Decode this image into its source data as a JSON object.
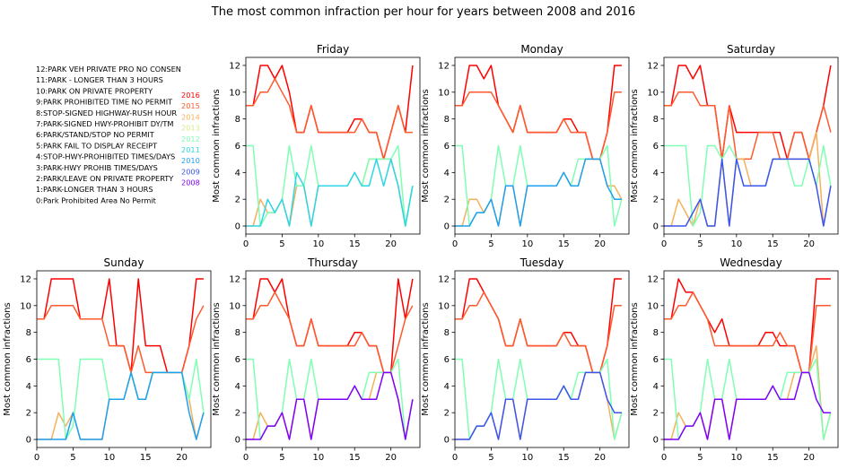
{
  "chart_data": {
    "type": "line",
    "title": "The most common infraction per hour for years between 2008 and 2016",
    "ylabel": "Most common infractions",
    "xlim": [
      0,
      24
    ],
    "ylim": [
      -0.6,
      12.6
    ],
    "xticks": [
      0,
      5,
      10,
      15,
      20
    ],
    "yticks": [
      0,
      2,
      4,
      6,
      8,
      10,
      12
    ],
    "hours": [
      0,
      1,
      2,
      3,
      4,
      5,
      6,
      7,
      8,
      9,
      10,
      11,
      12,
      13,
      14,
      15,
      16,
      17,
      18,
      19,
      20,
      21,
      22,
      23
    ],
    "legend_years": [
      "2016",
      "2015",
      "2014",
      "2013",
      "2012",
      "2011",
      "2010",
      "2009",
      "2008"
    ],
    "year_colors": {
      "2016": "#ff0000",
      "2015": "#ff5a2d",
      "2014": "#f4b15a",
      "2013": "#d4ec8a",
      "2012": "#80ffb4",
      "2011": "#2dd6e3",
      "2010": "#1ea0f0",
      "2009": "#3a55f0",
      "2008": "#8000ff"
    },
    "infraction_codes": [
      "12:PARK VEH PRIVATE PRO NO CONSEN",
      "11:PARK - LONGER THAN 3 HOURS",
      "10:PARK ON PRIVATE PROPERTY",
      "9:PARK PROHIBITED TIME NO PERMIT",
      "8:STOP-SIGNED HIGHWAY-RUSH HOUR",
      "7:PARK-SIGNED HWY-PROHIBIT DY/TM",
      "6:PARK/STAND/STOP NO PERMIT",
      "5:PARK FAIL TO DISPLAY RECEIPT",
      "4:STOP-HWY-PROHIBITED TIMES/DAYS",
      "3:PARK-HWY PROHIB TIMES/DAYS",
      "2:PARK/LEAVE ON PRIVATE PROPERTY",
      "1:PARK-LONGER THAN 3 HOURS",
      "0:Park Prohibited Area No Permit"
    ],
    "panels": [
      {
        "title": "Friday",
        "series": [
          {
            "year": "2016",
            "values": [
              9,
              9,
              12,
              12,
              11,
              12,
              10,
              7,
              7,
              9,
              7,
              7,
              7,
              7,
              7,
              8,
              8,
              7,
              7,
              5,
              7,
              9,
              7,
              12
            ]
          },
          {
            "year": "2015",
            "values": [
              9,
              9,
              10,
              10,
              11,
              10,
              9,
              7,
              7,
              9,
              7,
              7,
              7,
              7,
              7,
              7,
              8,
              7,
              7,
              5,
              7,
              9,
              7,
              7
            ]
          },
          {
            "year": "2014",
            "values": [
              0,
              0,
              2,
              1,
              1,
              2,
              0,
              3,
              3,
              0,
              3,
              3,
              3,
              3,
              3,
              4,
              3,
              5,
              5,
              5,
              5,
              3,
              0,
              3
            ]
          },
          {
            "year": "2012",
            "values": [
              6,
              6,
              0,
              1,
              1,
              2,
              6,
              3,
              3,
              6,
              3,
              3,
              3,
              3,
              3,
              4,
              3,
              5,
              5,
              5,
              5,
              6,
              0,
              3
            ]
          },
          {
            "year": "2011",
            "values": [
              0,
              0,
              0,
              2,
              1,
              2,
              0,
              4,
              3,
              0,
              3,
              3,
              3,
              3,
              3,
              4,
              3,
              3,
              5,
              3,
              5,
              3,
              0,
              3
            ]
          }
        ]
      },
      {
        "title": "Monday",
        "series": [
          {
            "year": "2016",
            "values": [
              9,
              9,
              12,
              12,
              11,
              12,
              9,
              8,
              7,
              9,
              7,
              7,
              7,
              7,
              7,
              8,
              8,
              7,
              7,
              5,
              5,
              7,
              12,
              12
            ]
          },
          {
            "year": "2015",
            "values": [
              9,
              9,
              10,
              10,
              10,
              10,
              9,
              8,
              7,
              9,
              7,
              7,
              7,
              7,
              7,
              8,
              7,
              7,
              7,
              5,
              5,
              7,
              10,
              10
            ]
          },
          {
            "year": "2014",
            "values": [
              0,
              0,
              2,
              2,
              1,
              2,
              0,
              3,
              3,
              0,
              3,
              3,
              3,
              3,
              3,
              4,
              3,
              3,
              5,
              5,
              5,
              3,
              3,
              2
            ]
          },
          {
            "year": "2012",
            "values": [
              6,
              6,
              0,
              1,
              1,
              2,
              6,
              3,
              3,
              6,
              3,
              3,
              3,
              3,
              3,
              4,
              3,
              5,
              5,
              5,
              5,
              6,
              0,
              2
            ]
          },
          {
            "year": "2010",
            "values": [
              0,
              0,
              0,
              1,
              1,
              2,
              0,
              3,
              3,
              0,
              3,
              3,
              3,
              3,
              3,
              4,
              3,
              3,
              5,
              5,
              5,
              3,
              2,
              2
            ]
          }
        ]
      },
      {
        "title": "Saturday",
        "series": [
          {
            "year": "2016",
            "values": [
              9,
              9,
              12,
              12,
              11,
              12,
              9,
              9,
              5,
              9,
              7,
              7,
              7,
              7,
              7,
              7,
              7,
              5,
              7,
              7,
              5,
              7,
              9,
              12
            ]
          },
          {
            "year": "2015",
            "values": [
              9,
              9,
              10,
              10,
              10,
              9,
              9,
              9,
              5,
              9,
              5,
              5,
              5,
              7,
              7,
              7,
              5,
              5,
              7,
              7,
              5,
              7,
              9,
              7
            ]
          },
          {
            "year": "2014",
            "values": [
              0,
              0,
              2,
              1,
              0,
              2,
              0,
              0,
              5,
              0,
              5,
              5,
              3,
              3,
              3,
              5,
              5,
              5,
              5,
              5,
              5,
              7,
              0,
              3
            ]
          },
          {
            "year": "2012",
            "values": [
              6,
              6,
              6,
              6,
              0,
              1,
              6,
              6,
              5,
              6,
              5,
              3,
              3,
              3,
              3,
              5,
              5,
              5,
              3,
              3,
              5,
              3,
              6,
              3
            ]
          },
          {
            "year": "2009",
            "values": [
              0,
              0,
              0,
              0,
              1,
              2,
              0,
              0,
              5,
              0,
              5,
              3,
              3,
              3,
              3,
              5,
              5,
              5,
              5,
              5,
              5,
              3,
              0,
              3
            ]
          }
        ]
      },
      {
        "title": "Sunday",
        "series": [
          {
            "year": "2016",
            "values": [
              9,
              9,
              12,
              12,
              12,
              12,
              9,
              9,
              9,
              9,
              12,
              7,
              7,
              5,
              12,
              7,
              7,
              7,
              5,
              5,
              5,
              7,
              12,
              12
            ]
          },
          {
            "year": "2015",
            "values": [
              9,
              9,
              10,
              10,
              10,
              10,
              9,
              9,
              9,
              9,
              7,
              7,
              7,
              5,
              7,
              5,
              5,
              5,
              5,
              5,
              5,
              7,
              9,
              10
            ]
          },
          {
            "year": "2014",
            "values": [
              0,
              0,
              0,
              2,
              1,
              2,
              0,
              0,
              0,
              0,
              3,
              3,
              3,
              5,
              3,
              3,
              5,
              5,
              5,
              5,
              5,
              3,
              0,
              2
            ]
          },
          {
            "year": "2012",
            "values": [
              6,
              6,
              6,
              6,
              0,
              1,
              6,
              6,
              6,
              6,
              3,
              3,
              3,
              5,
              3,
              3,
              5,
              5,
              5,
              5,
              5,
              3,
              6,
              2
            ]
          },
          {
            "year": "2010",
            "values": [
              0,
              0,
              0,
              0,
              0,
              2,
              0,
              0,
              0,
              0,
              3,
              3,
              3,
              5,
              3,
              3,
              5,
              5,
              5,
              5,
              5,
              2,
              0,
              2
            ]
          }
        ]
      },
      {
        "title": "Thursday",
        "series": [
          {
            "year": "2016",
            "values": [
              9,
              9,
              12,
              12,
              11,
              12,
              9,
              7,
              7,
              9,
              7,
              7,
              7,
              7,
              7,
              8,
              8,
              7,
              7,
              5,
              5,
              12,
              9,
              12
            ]
          },
          {
            "year": "2015",
            "values": [
              9,
              9,
              10,
              10,
              11,
              10,
              9,
              7,
              7,
              9,
              7,
              7,
              7,
              7,
              7,
              7,
              8,
              7,
              7,
              5,
              5,
              7,
              9,
              10
            ]
          },
          {
            "year": "2014",
            "values": [
              0,
              0,
              2,
              1,
              1,
              2,
              0,
              3,
              3,
              0,
              3,
              3,
              3,
              3,
              3,
              4,
              3,
              3,
              5,
              5,
              5,
              3,
              0,
              3
            ]
          },
          {
            "year": "2012",
            "values": [
              6,
              6,
              0,
              1,
              1,
              2,
              6,
              3,
              3,
              6,
              3,
              3,
              3,
              3,
              3,
              4,
              3,
              5,
              5,
              5,
              5,
              6,
              0,
              3
            ]
          },
          {
            "year": "2008",
            "values": [
              0,
              0,
              0,
              1,
              1,
              2,
              0,
              3,
              3,
              0,
              3,
              3,
              3,
              3,
              3,
              4,
              3,
              3,
              3,
              5,
              5,
              3,
              0,
              3
            ]
          }
        ]
      },
      {
        "title": "Tuesday",
        "series": [
          {
            "year": "2016",
            "values": [
              9,
              9,
              12,
              12,
              11,
              10,
              9,
              7,
              7,
              9,
              7,
              7,
              7,
              7,
              7,
              8,
              8,
              7,
              7,
              5,
              5,
              7,
              12,
              12
            ]
          },
          {
            "year": "2015",
            "values": [
              9,
              9,
              10,
              10,
              11,
              10,
              9,
              7,
              7,
              9,
              7,
              7,
              7,
              7,
              7,
              8,
              7,
              7,
              7,
              5,
              5,
              7,
              10,
              10
            ]
          },
          {
            "year": "2014",
            "values": [
              0,
              0,
              0,
              1,
              1,
              2,
              0,
              3,
              3,
              0,
              3,
              3,
              3,
              3,
              3,
              4,
              3,
              3,
              5,
              5,
              5,
              3,
              0,
              2
            ]
          },
          {
            "year": "2012",
            "values": [
              6,
              6,
              0,
              1,
              1,
              2,
              6,
              3,
              3,
              6,
              3,
              3,
              3,
              3,
              3,
              4,
              3,
              5,
              5,
              5,
              5,
              6,
              0,
              2
            ]
          },
          {
            "year": "2009",
            "values": [
              0,
              0,
              0,
              1,
              1,
              2,
              0,
              3,
              3,
              0,
              3,
              3,
              3,
              3,
              3,
              4,
              3,
              3,
              5,
              5,
              5,
              3,
              2,
              2
            ]
          }
        ]
      },
      {
        "title": "Wednesday",
        "series": [
          {
            "year": "2016",
            "values": [
              9,
              9,
              12,
              11,
              11,
              10,
              9,
              8,
              9,
              7,
              7,
              7,
              7,
              7,
              8,
              8,
              7,
              7,
              7,
              5,
              5,
              12,
              12,
              12
            ]
          },
          {
            "year": "2015",
            "values": [
              9,
              9,
              10,
              10,
              11,
              10,
              9,
              7,
              7,
              7,
              7,
              7,
              7,
              7,
              7,
              7,
              8,
              7,
              7,
              5,
              5,
              10,
              10,
              10
            ]
          },
          {
            "year": "2014",
            "values": [
              0,
              0,
              2,
              1,
              1,
              2,
              0,
              3,
              3,
              0,
              3,
              3,
              3,
              3,
              3,
              4,
              3,
              3,
              5,
              5,
              5,
              7,
              0,
              2
            ]
          },
          {
            "year": "2012",
            "values": [
              6,
              6,
              0,
              1,
              1,
              2,
              6,
              3,
              3,
              6,
              3,
              3,
              3,
              3,
              3,
              4,
              3,
              5,
              5,
              5,
              5,
              6,
              0,
              2
            ]
          },
          {
            "year": "2008",
            "values": [
              0,
              0,
              0,
              1,
              1,
              2,
              0,
              3,
              3,
              0,
              3,
              3,
              3,
              3,
              3,
              4,
              3,
              3,
              3,
              5,
              5,
              3,
              2,
              2
            ]
          }
        ]
      }
    ]
  }
}
